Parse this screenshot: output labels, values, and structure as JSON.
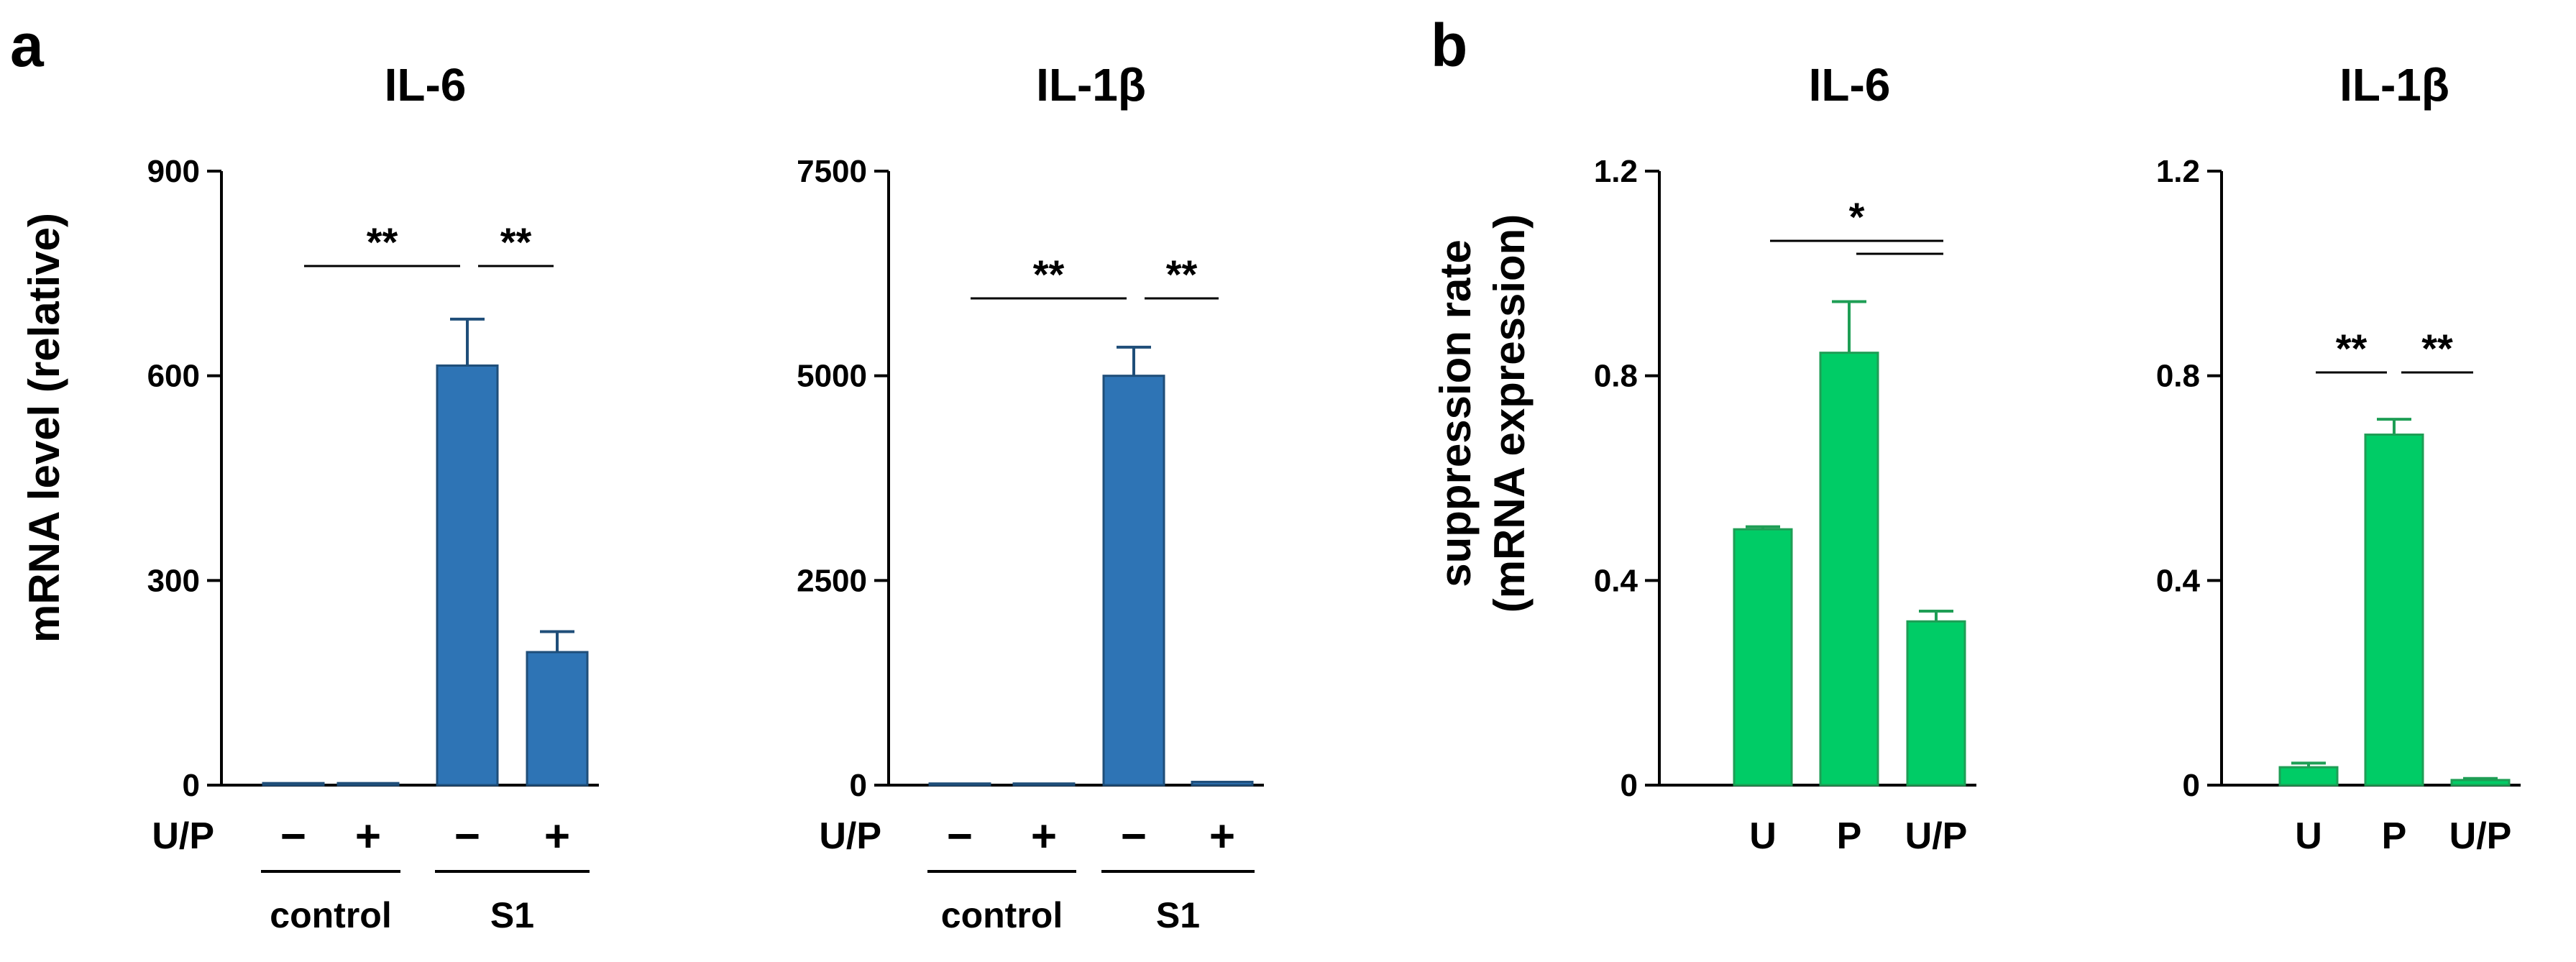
{
  "panels": {
    "a": {
      "letter": "a",
      "ylabel": "mRNA level (relative)",
      "row_label": "U/P",
      "sign_minus": "−",
      "sign_plus": "+",
      "group_labels": [
        "control",
        "S1"
      ]
    },
    "b": {
      "letter": "b",
      "ylabel_lines": [
        "suppression rate",
        "(mRNA expression)"
      ]
    }
  },
  "chart_data": [
    {
      "id": "a-il6",
      "type": "bar",
      "panel": "a",
      "title": "IL-6",
      "ylabel": "mRNA level (relative)",
      "ylim": [
        0,
        900
      ],
      "yticks": [
        0,
        300,
        600,
        900
      ],
      "ytick_labels": [
        "0",
        "300",
        "600",
        "900"
      ],
      "categories": [
        "control −",
        "control +",
        "S1 −",
        "S1 +"
      ],
      "values": [
        3,
        3,
        615,
        195
      ],
      "errors": [
        0,
        0,
        68,
        30
      ],
      "bar_color": "#2E74B5",
      "bar_edge": "#1F4E79",
      "significance": [
        {
          "from": 0,
          "to": 2,
          "label": "**"
        },
        {
          "from": 2,
          "to": 3,
          "label": "**"
        }
      ]
    },
    {
      "id": "a-il1b",
      "type": "bar",
      "panel": "a",
      "title": "IL-1β",
      "ylim": [
        0,
        7500
      ],
      "yticks": [
        0,
        2500,
        5000,
        7500
      ],
      "ytick_labels": [
        "0",
        "2500",
        "5000",
        "7500"
      ],
      "categories": [
        "control −",
        "control +",
        "S1 −",
        "S1 +"
      ],
      "values": [
        20,
        20,
        5000,
        40
      ],
      "errors": [
        0,
        0,
        350,
        0
      ],
      "bar_color": "#2E74B5",
      "bar_edge": "#1F4E79",
      "significance": [
        {
          "from": 0,
          "to": 2,
          "label": "**"
        },
        {
          "from": 2,
          "to": 3,
          "label": "**"
        }
      ]
    },
    {
      "id": "b-il6",
      "type": "bar",
      "panel": "b",
      "title": "IL-6",
      "ylabel": "suppression rate (mRNA expression)",
      "ylim": [
        0,
        1.2
      ],
      "yticks": [
        0,
        0.4,
        0.8,
        1.2
      ],
      "ytick_labels": [
        "0",
        "0.4",
        "0.8",
        "1.2"
      ],
      "categories": [
        "U",
        "P",
        "U/P"
      ],
      "values": [
        0.5,
        0.845,
        0.32
      ],
      "errors": [
        0.005,
        0.1,
        0.02
      ],
      "bar_color": "#00CC66",
      "bar_edge": "#1E9E55",
      "significance": [
        {
          "from": 0,
          "to": 2,
          "label": "*"
        },
        {
          "from": 1,
          "to": 2,
          "label": ""
        }
      ]
    },
    {
      "id": "b-il1b",
      "type": "bar",
      "panel": "b",
      "title": "IL-1β",
      "ylim": [
        0,
        1.2
      ],
      "yticks": [
        0,
        0.4,
        0.8,
        1.2
      ],
      "ytick_labels": [
        "0",
        "0.4",
        "0.8",
        "1.2"
      ],
      "categories": [
        "U",
        "P",
        "U/P"
      ],
      "values": [
        0.035,
        0.685,
        0.01
      ],
      "errors": [
        0.008,
        0.03,
        0.003
      ],
      "bar_color": "#00CC66",
      "bar_edge": "#1E9E55",
      "significance": [
        {
          "from": 0,
          "to": 1,
          "label": "**"
        },
        {
          "from": 1,
          "to": 2,
          "label": "**"
        }
      ]
    }
  ]
}
